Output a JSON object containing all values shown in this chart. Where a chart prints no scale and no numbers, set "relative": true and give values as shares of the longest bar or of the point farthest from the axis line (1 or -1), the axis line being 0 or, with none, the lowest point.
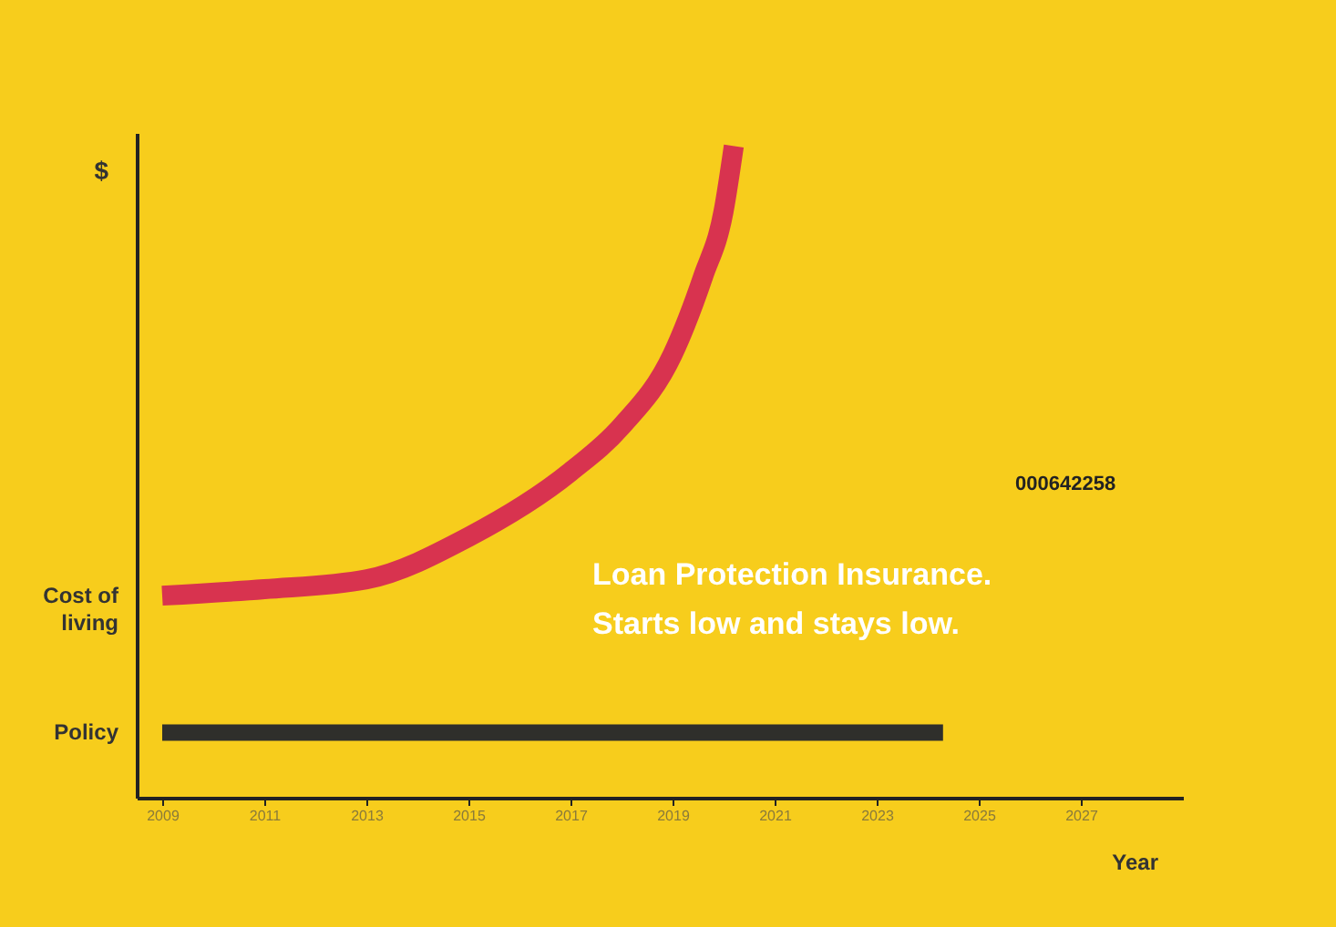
{
  "chart_data": {
    "type": "line",
    "relative": true,
    "ylabel": "$",
    "xlabel": "Year",
    "xlim": [
      2008.5,
      2029
    ],
    "xticks": [
      2009,
      2011,
      2013,
      2015,
      2017,
      2019,
      2021,
      2023,
      2025,
      2027
    ],
    "series": [
      {
        "name": "Cost of living",
        "color": "#d8334f",
        "x": [
          2009,
          2011,
          2013,
          2015,
          2017,
          2018,
          2019,
          2019.6,
          2020,
          2020.2
        ],
        "values": [
          0.31,
          0.32,
          0.335,
          0.4,
          0.5,
          0.57,
          0.68,
          0.8,
          0.9,
          1
        ]
      },
      {
        "name": "Policy",
        "color": "#2f2f2b",
        "x": [
          2009,
          2024.3
        ],
        "values": [
          0.1,
          0.1
        ]
      }
    ],
    "annotations": [
      "Loan Protection Insurance.",
      "Starts low and stays low.",
      "000642258"
    ],
    "marker": "none",
    "line_style": "solid"
  }
}
